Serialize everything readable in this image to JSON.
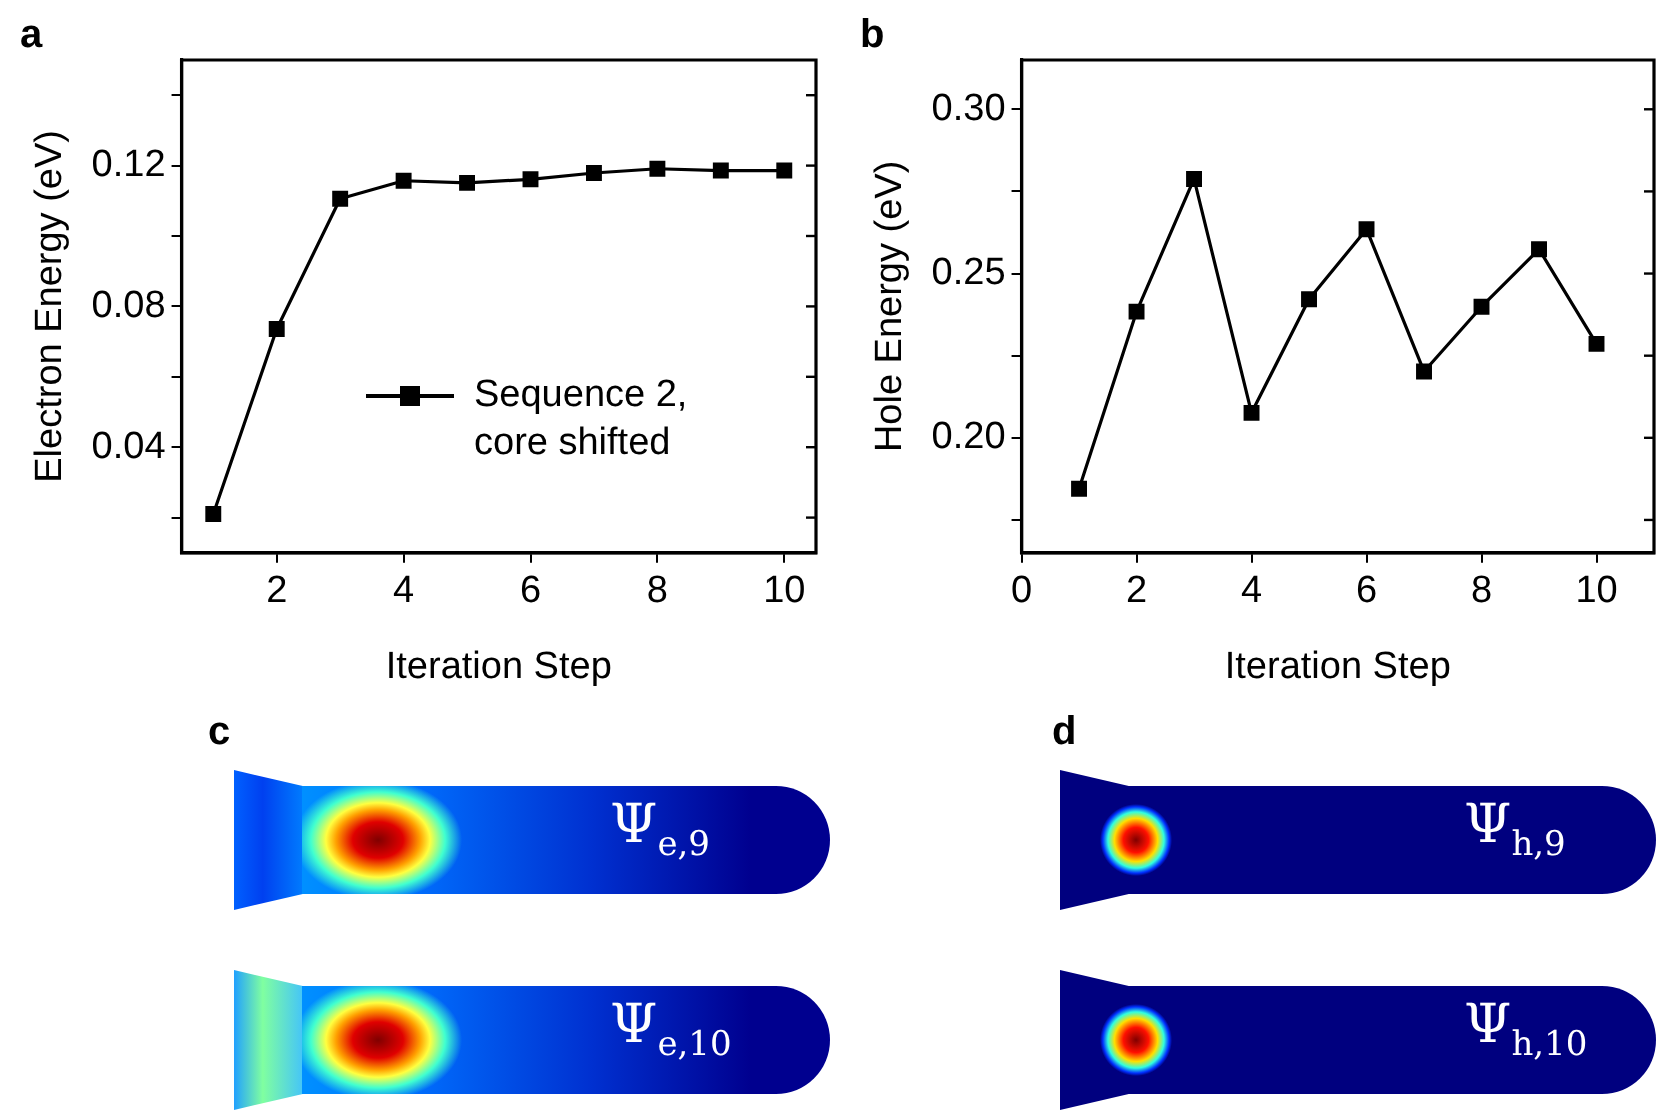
{
  "chart_data": [
    {
      "type": "line",
      "title": "a",
      "xlabel": "Iteration Step",
      "ylabel": "Electron Energy (eV)",
      "x": [
        1,
        2,
        3,
        4,
        5,
        6,
        7,
        8,
        9,
        10
      ],
      "series": [
        {
          "name": "Sequence 2, core shifted",
          "color": "#000000",
          "values": [
            0.021,
            0.0736,
            0.1106,
            0.1157,
            0.1151,
            0.1161,
            0.1179,
            0.1191,
            0.1186,
            0.1186
          ]
        }
      ],
      "xlim": [
        0.5,
        10.5
      ],
      "xticks": [
        2,
        4,
        6,
        8,
        10
      ],
      "ylim": [
        0.01,
        0.15
      ],
      "yticks": [
        {
          "value": 0.02,
          "label": null
        },
        {
          "value": 0.04,
          "label": "0.04"
        },
        {
          "value": 0.06,
          "label": null
        },
        {
          "value": 0.08,
          "label": "0.08"
        },
        {
          "value": 0.1,
          "label": null
        },
        {
          "value": 0.12,
          "label": "0.12"
        },
        {
          "value": 0.14,
          "label": null
        }
      ],
      "grid": false,
      "legend": "bottom right",
      "marker": "square",
      "line_style": "solid"
    },
    {
      "type": "line",
      "title": "b",
      "xlabel": "Iteration Step",
      "ylabel": "Hole Energy (eV)",
      "x": [
        1,
        2,
        3,
        4,
        5,
        6,
        7,
        8,
        9,
        10
      ],
      "series": [
        {
          "color": "#000000",
          "values": [
            0.1845,
            0.2384,
            0.2788,
            0.2076,
            0.2422,
            0.2635,
            0.2202,
            0.2399,
            0.2574,
            0.2286
          ]
        }
      ],
      "xlim": [
        0,
        11
      ],
      "xticks": [
        0,
        2,
        4,
        6,
        8,
        10
      ],
      "ylim": [
        0.165,
        0.315
      ],
      "yticks": [
        {
          "value": 0.175,
          "label": null
        },
        {
          "value": 0.2,
          "label": "0.20"
        },
        {
          "value": 0.225,
          "label": null
        },
        {
          "value": 0.25,
          "label": "0.25"
        },
        {
          "value": 0.275,
          "label": null
        },
        {
          "value": 0.3,
          "label": "0.30"
        }
      ],
      "grid": false,
      "marker": "square",
      "line_style": "solid"
    },
    {
      "type": "other",
      "title": "c",
      "annotations": [
        "Ψ$_{e,9}$",
        "Ψ$_{e,10}$"
      ]
    },
    {
      "type": "other",
      "title": "d",
      "annotations": [
        "Ψ$_{h,9}$",
        "Ψ$_{h,10}$"
      ]
    }
  ]
}
